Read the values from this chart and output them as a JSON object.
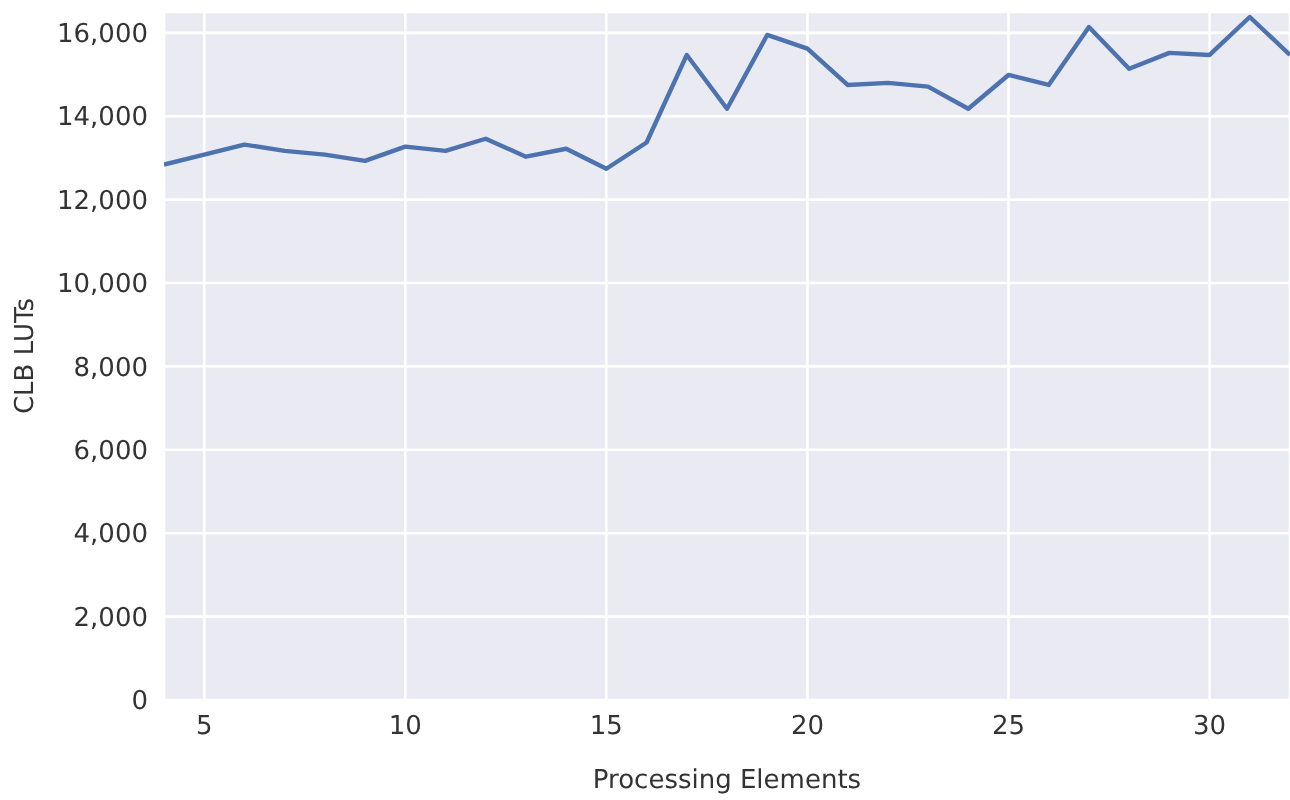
{
  "chart_data": {
    "type": "line",
    "xlabel": "Processing Elements",
    "ylabel": "CLB LUTs",
    "x": [
      4,
      5,
      6,
      7,
      8,
      9,
      10,
      11,
      12,
      13,
      14,
      15,
      16,
      17,
      18,
      19,
      20,
      21,
      22,
      23,
      24,
      25,
      26,
      27,
      28,
      29,
      30,
      31,
      32
    ],
    "series": [
      {
        "color": "#4c72b0",
        "values": [
          12840,
          13080,
          13320,
          13170,
          13080,
          12930,
          13270,
          13170,
          13460,
          13030,
          13220,
          12740,
          13370,
          15470,
          14180,
          15950,
          15620,
          14750,
          14800,
          14710,
          14180,
          14990,
          14750,
          16140,
          15140,
          15520,
          15470,
          16380,
          15470
        ]
      }
    ],
    "xlim": [
      4,
      32
    ],
    "xticks": [
      5,
      10,
      15,
      20,
      25,
      30
    ],
    "ylim": [
      0,
      16500
    ],
    "yticks": [
      {
        "value": 0,
        "label": "0"
      },
      {
        "value": 2000,
        "label": "2,000"
      },
      {
        "value": 4000,
        "label": "4,000"
      },
      {
        "value": 6000,
        "label": "6,000"
      },
      {
        "value": 8000,
        "label": "8,000"
      },
      {
        "value": 10000,
        "label": "10,000"
      },
      {
        "value": 12000,
        "label": "12,000"
      },
      {
        "value": 14000,
        "label": "14,000"
      },
      {
        "value": 16000,
        "label": "16,000"
      }
    ],
    "grid": true,
    "legend": false,
    "marker": "none",
    "line_style": "solid"
  }
}
